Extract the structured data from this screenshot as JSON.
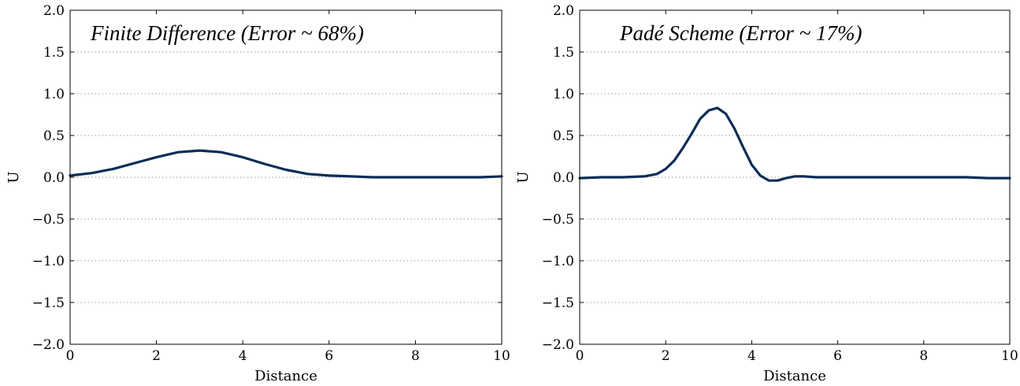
{
  "chart_data": [
    {
      "type": "line",
      "title": "Finite Difference (Error ~ 68%)",
      "xlabel": "Distance",
      "ylabel": "U",
      "xlim": [
        0,
        10
      ],
      "ylim": [
        -2.0,
        2.0
      ],
      "xticks": [
        0,
        2,
        4,
        6,
        8,
        10
      ],
      "xtick_labels": [
        "0",
        "2",
        "4",
        "6",
        "8",
        "10"
      ],
      "yticks": [
        -2.0,
        -1.5,
        -1.0,
        -0.5,
        0.0,
        0.5,
        1.0,
        1.5,
        2.0
      ],
      "ytick_labels": [
        "−2.0",
        "−1.5",
        "−1.0",
        "−0.5",
        "0.0",
        "0.5",
        "1.0",
        "1.5",
        "2.0"
      ],
      "grid": "horizontal, dotted",
      "series": [
        {
          "color": "#0b2d57",
          "x": [
            0,
            0.5,
            1.0,
            1.5,
            2.0,
            2.5,
            3.0,
            3.5,
            4.0,
            4.5,
            5.0,
            5.5,
            6.0,
            6.5,
            7.0,
            7.5,
            8.0,
            8.5,
            9.0,
            9.5,
            10.0
          ],
          "y": [
            0.02,
            0.05,
            0.1,
            0.17,
            0.24,
            0.3,
            0.32,
            0.3,
            0.24,
            0.16,
            0.09,
            0.04,
            0.02,
            0.01,
            0.0,
            0.0,
            0.0,
            0.0,
            0.0,
            0.0,
            0.01
          ]
        }
      ]
    },
    {
      "type": "line",
      "title": "Padé Scheme (Error ~ 17%)",
      "xlabel": "Distance",
      "ylabel": "U",
      "xlim": [
        0,
        10
      ],
      "ylim": [
        -2.0,
        2.0
      ],
      "xticks": [
        0,
        2,
        4,
        6,
        8,
        10
      ],
      "xtick_labels": [
        "0",
        "2",
        "4",
        "6",
        "8",
        "10"
      ],
      "yticks": [
        -2.0,
        -1.5,
        -1.0,
        -0.5,
        0.0,
        0.5,
        1.0,
        1.5,
        2.0
      ],
      "ytick_labels": [
        "−2.0",
        "−1.5",
        "−1.0",
        "−0.5",
        "0.0",
        "0.5",
        "1.0",
        "1.5",
        "2.0"
      ],
      "grid": "horizontal, dotted",
      "series": [
        {
          "color": "#0b2d57",
          "x": [
            0,
            0.5,
            1.0,
            1.5,
            1.8,
            2.0,
            2.2,
            2.4,
            2.6,
            2.8,
            3.0,
            3.2,
            3.4,
            3.6,
            3.8,
            4.0,
            4.2,
            4.4,
            4.6,
            4.8,
            5.0,
            5.2,
            5.5,
            6.0,
            7.0,
            8.0,
            9.0,
            9.5,
            10.0
          ],
          "y": [
            -0.01,
            0.0,
            0.0,
            0.01,
            0.04,
            0.1,
            0.2,
            0.35,
            0.52,
            0.7,
            0.8,
            0.83,
            0.76,
            0.58,
            0.36,
            0.15,
            0.02,
            -0.04,
            -0.04,
            -0.01,
            0.01,
            0.01,
            0.0,
            0.0,
            0.0,
            0.0,
            0.0,
            -0.01,
            -0.01
          ]
        }
      ]
    }
  ]
}
